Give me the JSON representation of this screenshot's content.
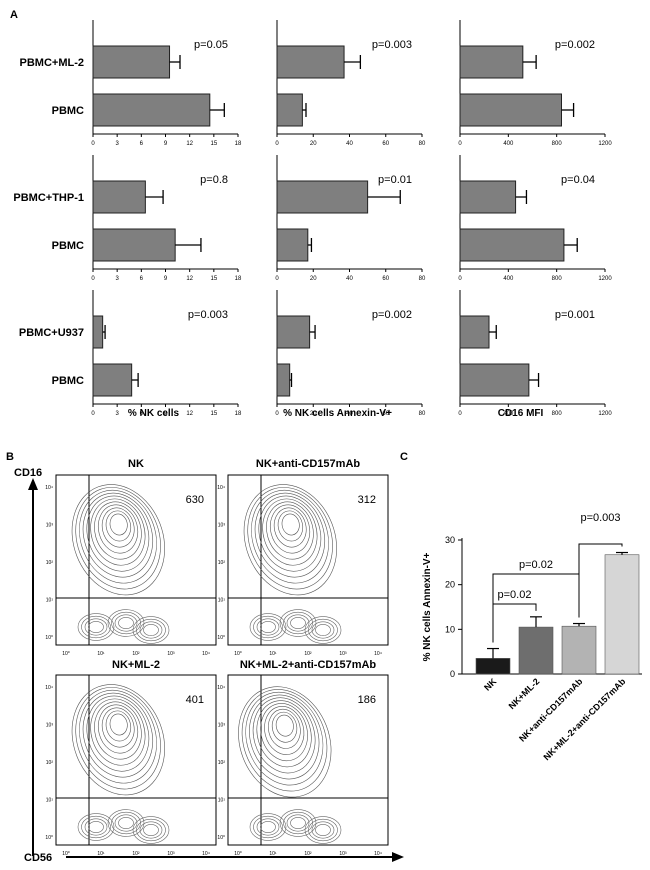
{
  "panels": {
    "a": "A",
    "b": "B",
    "c": "C"
  },
  "colors": {
    "bar_gray": "#7f7f7f",
    "c_bars": [
      "#1a1a1a",
      "#6e6e6e",
      "#b3b3b3",
      "#d6d6d6"
    ]
  },
  "chart_data": [
    {
      "type": "bar",
      "orientation": "horizontal",
      "id": "r1c1",
      "categories": [
        "PBMC+ML-2",
        "PBMC"
      ],
      "values": [
        9.5,
        14.5
      ],
      "errors": [
        1.3,
        1.8
      ],
      "xlim": [
        0,
        18
      ],
      "xticks": [
        "0",
        "3",
        "6",
        "9",
        "12",
        "15",
        "18"
      ],
      "annotation": "p=0.05",
      "xlabel": ""
    },
    {
      "type": "bar",
      "orientation": "horizontal",
      "id": "r1c2",
      "categories": [
        "PBMC+ML-2",
        "PBMC"
      ],
      "values": [
        37,
        14
      ],
      "errors": [
        9,
        2
      ],
      "xlim": [
        0,
        80
      ],
      "xticks": [
        "0",
        "20",
        "40",
        "60",
        "80"
      ],
      "annotation": "p=0.003",
      "xlabel": ""
    },
    {
      "type": "bar",
      "orientation": "horizontal",
      "id": "r1c3",
      "categories": [
        "PBMC+ML-2",
        "PBMC"
      ],
      "values": [
        520,
        840
      ],
      "errors": [
        110,
        100
      ],
      "xlim": [
        0,
        1200
      ],
      "xticks": [
        "0",
        "400",
        "800",
        "1200"
      ],
      "annotation": "p=0.002",
      "xlabel": ""
    },
    {
      "type": "bar",
      "orientation": "horizontal",
      "id": "r2c1",
      "categories": [
        "PBMC+THP-1",
        "PBMC"
      ],
      "values": [
        6.5,
        10.2
      ],
      "errors": [
        2.2,
        3.2
      ],
      "xlim": [
        0,
        18
      ],
      "xticks": [
        "0",
        "3",
        "6",
        "9",
        "12",
        "15",
        "18"
      ],
      "annotation": "p=0.8",
      "xlabel": ""
    },
    {
      "type": "bar",
      "orientation": "horizontal",
      "id": "r2c2",
      "categories": [
        "PBMC+THP-1",
        "PBMC"
      ],
      "values": [
        50,
        17
      ],
      "errors": [
        18,
        2
      ],
      "xlim": [
        0,
        80
      ],
      "xticks": [
        "0",
        "20",
        "40",
        "60",
        "80"
      ],
      "annotation": "p=0.01",
      "xlabel": ""
    },
    {
      "type": "bar",
      "orientation": "horizontal",
      "id": "r2c3",
      "categories": [
        "PBMC+THP-1",
        "PBMC"
      ],
      "values": [
        460,
        860
      ],
      "errors": [
        90,
        110
      ],
      "xlim": [
        0,
        1200
      ],
      "xticks": [
        "0",
        "400",
        "800",
        "1200"
      ],
      "annotation": "p=0.04",
      "xlabel": ""
    },
    {
      "type": "bar",
      "orientation": "horizontal",
      "id": "r3c1",
      "categories": [
        "PBMC+U937",
        "PBMC"
      ],
      "values": [
        1.2,
        4.8
      ],
      "errors": [
        0.3,
        0.8
      ],
      "xlim": [
        0,
        18
      ],
      "xticks": [
        "0",
        "3",
        "6",
        "9",
        "12",
        "15",
        "18"
      ],
      "annotation": "p=0.003",
      "xlabel": "% NK cells"
    },
    {
      "type": "bar",
      "orientation": "horizontal",
      "id": "r3c2",
      "categories": [
        "PBMC+U937",
        "PBMC"
      ],
      "values": [
        18,
        7
      ],
      "errors": [
        3,
        1
      ],
      "xlim": [
        0,
        80
      ],
      "xticks": [
        "0",
        "20",
        "40",
        "60",
        "80"
      ],
      "annotation": "p=0.002",
      "xlabel": "% NK cells Annexin-V+"
    },
    {
      "type": "bar",
      "orientation": "horizontal",
      "id": "r3c3",
      "categories": [
        "PBMC+U937",
        "PBMC"
      ],
      "values": [
        240,
        570
      ],
      "errors": [
        60,
        80
      ],
      "xlim": [
        0,
        1200
      ],
      "xticks": [
        "0",
        "400",
        "800",
        "1200"
      ],
      "annotation": "p=0.001",
      "xlabel": "CD16 MFI"
    },
    {
      "type": "contour",
      "xaxis_label": "CD56",
      "yaxis_label": "CD16",
      "log_ticks": [
        "10⁰",
        "10¹",
        "10²",
        "10³",
        "10⁴"
      ],
      "plots": [
        {
          "title": "NK",
          "value": "630"
        },
        {
          "title": "NK+anti-CD157mAb",
          "value": "312"
        },
        {
          "title": "NK+ML-2",
          "value": "401"
        },
        {
          "title": "NK+ML-2+anti-CD157mAb",
          "value": "186"
        }
      ]
    },
    {
      "type": "bar",
      "orientation": "vertical",
      "categories": [
        "NK",
        "NK+ML-2",
        "NK+anti-CD157mAb",
        "NK+ML-2+anti-CD157mAb"
      ],
      "values": [
        3.5,
        10.5,
        10.7,
        26.7
      ],
      "errors": [
        2.2,
        2.3,
        0.6,
        0.5
      ],
      "ylim": [
        0,
        30
      ],
      "yticks": [
        "0",
        "10",
        "20",
        "30"
      ],
      "ylabel": "% NK cells Annexin-V+",
      "comparisons": [
        {
          "from": 0,
          "to": 1,
          "label": "p=0.02"
        },
        {
          "from": 0,
          "to": 2,
          "label": "p=0.02"
        },
        {
          "from": 2,
          "to": 3,
          "label": "p=0.003"
        }
      ]
    }
  ]
}
